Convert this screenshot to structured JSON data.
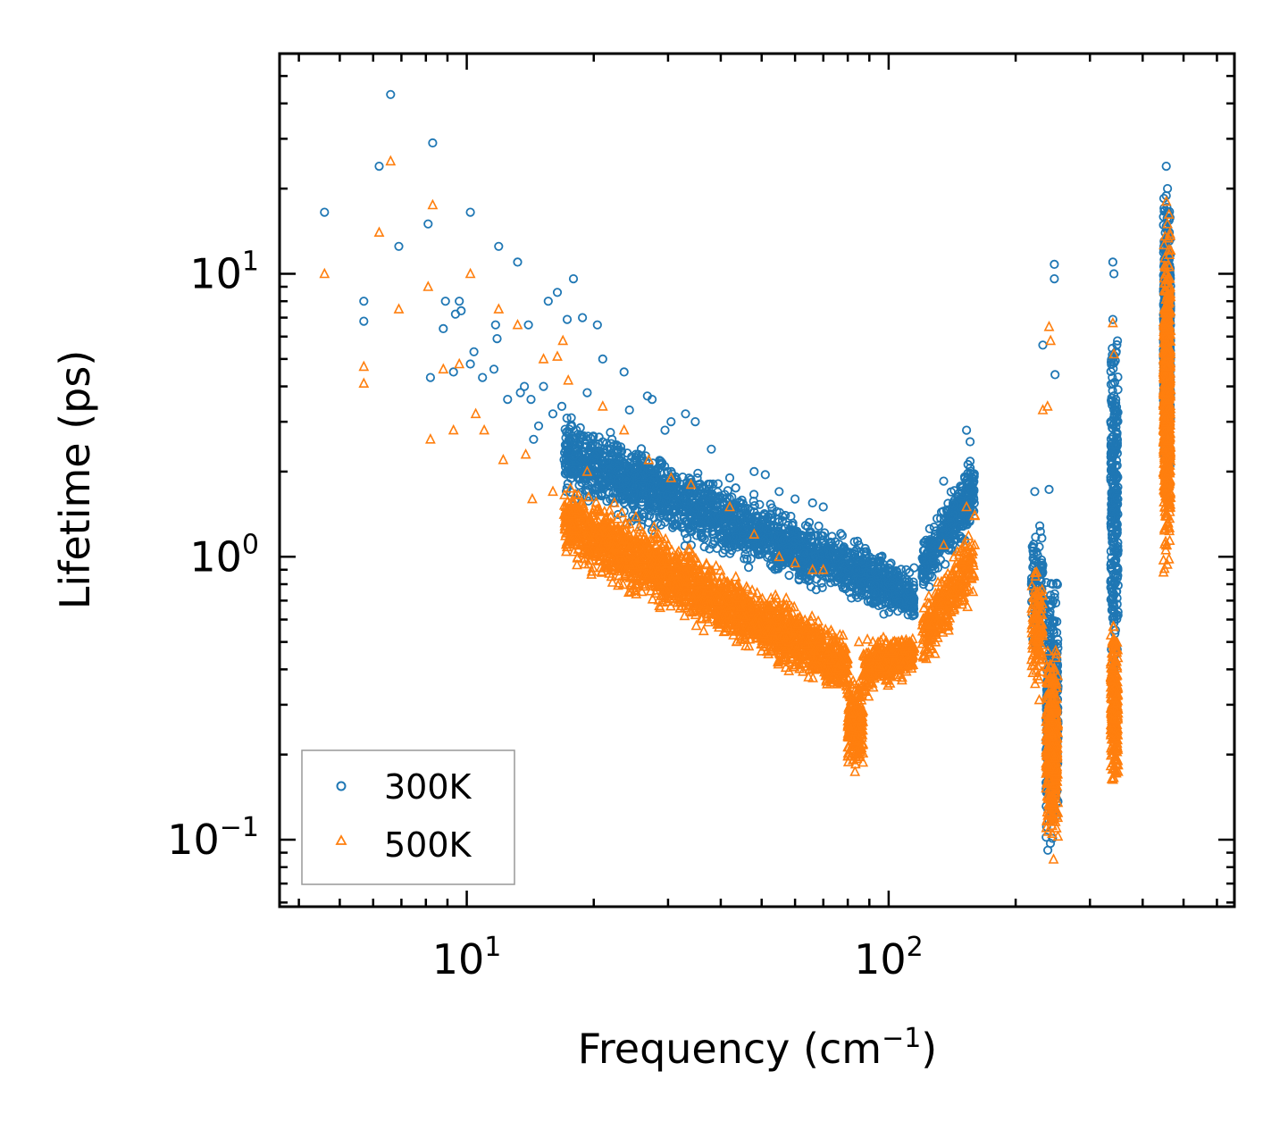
{
  "chart_data": {
    "type": "scatter",
    "title": "",
    "xlabel": "Frequency (cm",
    "xlabel_sup": "−1",
    "xlabel_suffix": ")",
    "ylabel": "Lifetime (ps)",
    "xscale": "log",
    "yscale": "log",
    "xlim": [
      3.6,
      660
    ],
    "ylim": [
      0.058,
      60
    ],
    "x_ticks": [
      {
        "value": 10,
        "base": "10",
        "exp": "1"
      },
      {
        "value": 100,
        "base": "10",
        "exp": "2"
      }
    ],
    "y_ticks": [
      {
        "value": 0.1,
        "base": "10",
        "exp": "−1"
      },
      {
        "value": 1,
        "base": "10",
        "exp": "0"
      },
      {
        "value": 10,
        "base": "10",
        "exp": "1"
      }
    ],
    "legend_position": "lower-left",
    "series": [
      {
        "name": "300K",
        "marker": "circle",
        "color": "#1f77b4",
        "points": [
          [
            4.6,
            16.5
          ],
          [
            5.7,
            8.0
          ],
          [
            5.7,
            6.8
          ],
          [
            6.2,
            24
          ],
          [
            6.6,
            43
          ],
          [
            6.9,
            12.5
          ],
          [
            8.1,
            15
          ],
          [
            8.2,
            4.3
          ],
          [
            8.3,
            29
          ],
          [
            8.8,
            6.4
          ],
          [
            8.9,
            8.0
          ],
          [
            9.3,
            4.5
          ],
          [
            9.4,
            7.2
          ],
          [
            9.6,
            8.0
          ],
          [
            9.7,
            7.4
          ],
          [
            10.2,
            16.5
          ],
          [
            10.2,
            4.8
          ],
          [
            10.4,
            5.3
          ],
          [
            10.9,
            4.3
          ],
          [
            11.6,
            4.6
          ],
          [
            11.7,
            6.6
          ],
          [
            11.8,
            5.9
          ],
          [
            11.9,
            12.5
          ],
          [
            12.5,
            3.6
          ],
          [
            13.2,
            11
          ],
          [
            13.4,
            3.8
          ],
          [
            13.7,
            4.0
          ],
          [
            14.0,
            6.6
          ],
          [
            14.2,
            3.6
          ],
          [
            14.4,
            2.6
          ],
          [
            14.8,
            2.9
          ],
          [
            15.2,
            4.0
          ],
          [
            15.6,
            8.0
          ],
          [
            16.0,
            3.2
          ],
          [
            16.4,
            8.6
          ],
          [
            16.8,
            3.4
          ],
          [
            17.3,
            6.9
          ],
          [
            17.9,
            9.6
          ],
          [
            18.2,
            2.8
          ],
          [
            18.8,
            7.0
          ],
          [
            19.3,
            3.8
          ],
          [
            19.9,
            2.5
          ],
          [
            20.4,
            6.6
          ],
          [
            21.0,
            5.0
          ],
          [
            21.9,
            2.4
          ],
          [
            23.6,
            4.5
          ],
          [
            24.3,
            3.3
          ],
          [
            26.8,
            3.7
          ],
          [
            27.5,
            3.6
          ],
          [
            29.5,
            2.8
          ],
          [
            30.5,
            3.0
          ],
          [
            33.0,
            3.2
          ],
          [
            34.8,
            3.0
          ],
          [
            38.0,
            2.4
          ],
          [
            42.0,
            1.9
          ],
          [
            48.0,
            2.0
          ],
          [
            51.0,
            1.95
          ],
          [
            55.0,
            1.7
          ],
          [
            60.0,
            1.6
          ],
          [
            66.0,
            1.55
          ],
          [
            70.0,
            1.5
          ],
          [
            85.0,
            1.1
          ],
          [
            88.0,
            1.07
          ],
          [
            110.0,
            0.9
          ],
          [
            112.0,
            0.88
          ],
          [
            135.0,
            1.85
          ],
          [
            153.0,
            2.8
          ],
          [
            156.0,
            2.55
          ],
          [
            222.0,
            1.7
          ],
          [
            232.0,
            5.6
          ],
          [
            240.0,
            1.73
          ],
          [
            247.0,
            10.8
          ],
          [
            247.0,
            9.6
          ],
          [
            248.0,
            4.4
          ],
          [
            340.0,
            11
          ],
          [
            342.0,
            10
          ],
          [
            345.0,
            0.86
          ],
          [
            345.0,
            0.55
          ],
          [
            455.0,
            24
          ],
          [
            458.0,
            20
          ]
        ],
        "clusters": [
          {
            "x": [
              17,
              115
            ],
            "y_top": [
              3.5,
              0.95
            ],
            "y_bottom": [
              1.5,
              0.55
            ],
            "count": 2200
          },
          {
            "x": [
              120,
              160
            ],
            "y_top": [
              1.2,
              2.5
            ],
            "y_bottom": [
              0.7,
              1.2
            ],
            "count": 350
          },
          {
            "x": [
              218,
              232
            ],
            "y_top": [
              1.5,
              1.5
            ],
            "y_bottom": [
              0.4,
              0.4
            ],
            "count": 120
          },
          {
            "x": [
              236,
              252
            ],
            "y_top": [
              1.0,
              1.0
            ],
            "y_bottom": [
              0.08,
              0.08
            ],
            "count": 400
          },
          {
            "x": [
              336,
              350
            ],
            "y_top": [
              10,
              10
            ],
            "y_bottom": [
              0.3,
              0.3
            ],
            "count": 300
          },
          {
            "x": [
              448,
              466
            ],
            "y_top": [
              22,
              22
            ],
            "y_bottom": [
              1.5,
              1.5
            ],
            "count": 700
          }
        ]
      },
      {
        "name": "500K",
        "marker": "triangle",
        "color": "#ff7f0e",
        "points": [
          [
            4.6,
            10
          ],
          [
            5.7,
            4.7
          ],
          [
            5.7,
            4.1
          ],
          [
            6.2,
            14
          ],
          [
            6.6,
            25
          ],
          [
            6.9,
            7.5
          ],
          [
            8.1,
            9.0
          ],
          [
            8.2,
            2.6
          ],
          [
            8.3,
            17.5
          ],
          [
            8.8,
            4.6
          ],
          [
            9.3,
            2.8
          ],
          [
            9.6,
            4.8
          ],
          [
            10.2,
            10
          ],
          [
            10.5,
            3.2
          ],
          [
            11.0,
            2.8
          ],
          [
            11.9,
            7.5
          ],
          [
            12.2,
            2.2
          ],
          [
            13.2,
            6.6
          ],
          [
            13.8,
            2.3
          ],
          [
            14.3,
            1.6
          ],
          [
            15.2,
            5.0
          ],
          [
            16.0,
            1.7
          ],
          [
            16.4,
            5.1
          ],
          [
            16.9,
            5.8
          ],
          [
            17.4,
            4.2
          ],
          [
            19.3,
            2.0
          ],
          [
            21.0,
            3.4
          ],
          [
            23.6,
            2.8
          ],
          [
            27.0,
            2.2
          ],
          [
            30.5,
            1.9
          ],
          [
            34.0,
            1.8
          ],
          [
            42.0,
            1.5
          ],
          [
            48.0,
            1.2
          ],
          [
            55.0,
            1.0
          ],
          [
            60.0,
            0.95
          ],
          [
            66.0,
            0.9
          ],
          [
            70.0,
            0.9
          ],
          [
            85.0,
            0.5
          ],
          [
            112.0,
            0.5
          ],
          [
            135.0,
            1.1
          ],
          [
            153.0,
            1.5
          ],
          [
            240.0,
            6.5
          ],
          [
            242.0,
            5.8
          ],
          [
            238.0,
            3.4
          ],
          [
            232.0,
            3.3
          ],
          [
            340.0,
            6.7
          ],
          [
            342.0,
            5.2
          ],
          [
            455.0,
            18
          ],
          [
            458.0,
            15
          ],
          [
            456.0,
            1.1
          ]
        ],
        "clusters": [
          {
            "x": [
              17,
              80
            ],
            "y_top": [
              2.0,
              0.55
            ],
            "y_bottom": [
              0.9,
              0.3
            ],
            "count": 2200
          },
          {
            "x": [
              80,
              87
            ],
            "y_top": [
              0.4,
              0.4
            ],
            "y_bottom": [
              0.17,
              0.17
            ],
            "count": 260
          },
          {
            "x": [
              87,
              115
            ],
            "y_top": [
              0.55,
              0.55
            ],
            "y_bottom": [
              0.3,
              0.38
            ],
            "count": 400
          },
          {
            "x": [
              120,
              160
            ],
            "y_top": [
              0.7,
              1.5
            ],
            "y_bottom": [
              0.38,
              0.65
            ],
            "count": 300
          },
          {
            "x": [
              218,
              232
            ],
            "y_top": [
              1.0,
              1.0
            ],
            "y_bottom": [
              0.3,
              0.3
            ],
            "count": 120
          },
          {
            "x": [
              236,
              252
            ],
            "y_top": [
              0.6,
              0.6
            ],
            "y_bottom": [
              0.075,
              0.075
            ],
            "count": 350
          },
          {
            "x": [
              336,
              350
            ],
            "y_top": [
              0.65,
              0.65
            ],
            "y_bottom": [
              0.13,
              0.13
            ],
            "count": 280
          },
          {
            "x": [
              448,
              466
            ],
            "y_top": [
              17,
              17
            ],
            "y_bottom": [
              0.75,
              0.75
            ],
            "count": 700
          }
        ]
      }
    ]
  }
}
